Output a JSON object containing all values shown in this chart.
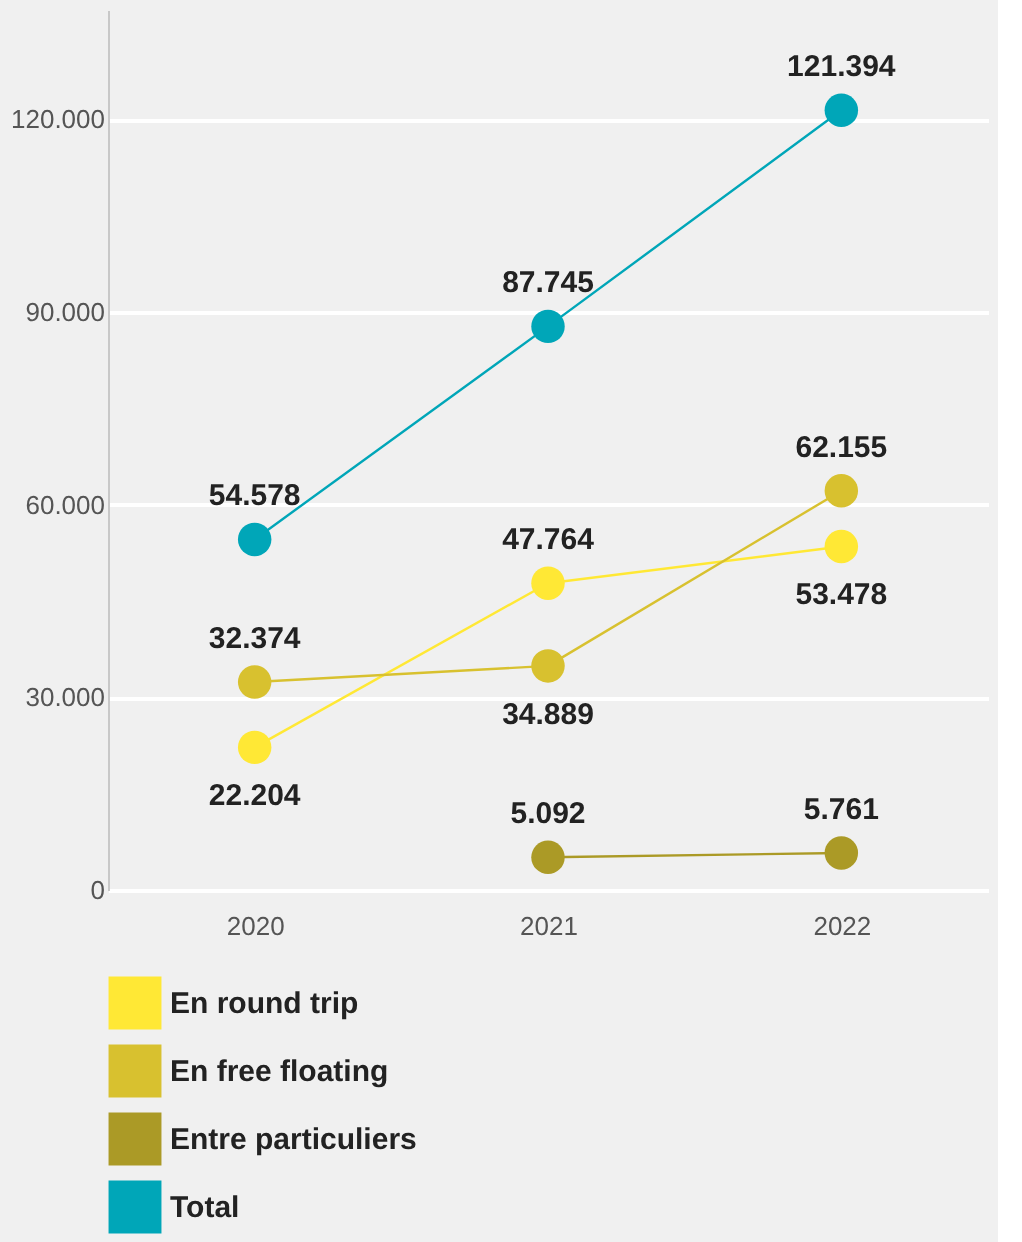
{
  "chart_data": {
    "type": "line",
    "categories": [
      "2020",
      "2021",
      "2022"
    ],
    "series": [
      {
        "name": "En round trip",
        "color": "#ffe835",
        "values": [
          22204,
          47764,
          53478
        ],
        "value_labels": [
          "22.204",
          "47.764",
          "53.478"
        ]
      },
      {
        "name": "En free floating",
        "color": "#d8c12f",
        "values": [
          32374,
          34889,
          62155
        ],
        "value_labels": [
          "32.374",
          "34.889",
          "62.155"
        ]
      },
      {
        "name": "Entre particuliers",
        "color": "#ab9a26",
        "values": [
          null,
          5092,
          5761
        ],
        "value_labels": [
          null,
          "5.092",
          "5.761"
        ]
      },
      {
        "name": "Total",
        "color": "#00a6b8",
        "values": [
          54578,
          87745,
          121394
        ],
        "value_labels": [
          "54.578",
          "87.745",
          "121.394"
        ]
      }
    ],
    "ylim": [
      0,
      137000
    ],
    "yticks": [
      0,
      {
        "value": 30000,
        "label": "30.000"
      },
      {
        "value": 60000,
        "label": "60.000"
      },
      {
        "value": 90000,
        "label": "90.000"
      },
      {
        "value": 120000,
        "label": "120.000"
      }
    ],
    "grid": "y",
    "marker": "circle",
    "line_style": "solid",
    "legend": "bottom"
  }
}
